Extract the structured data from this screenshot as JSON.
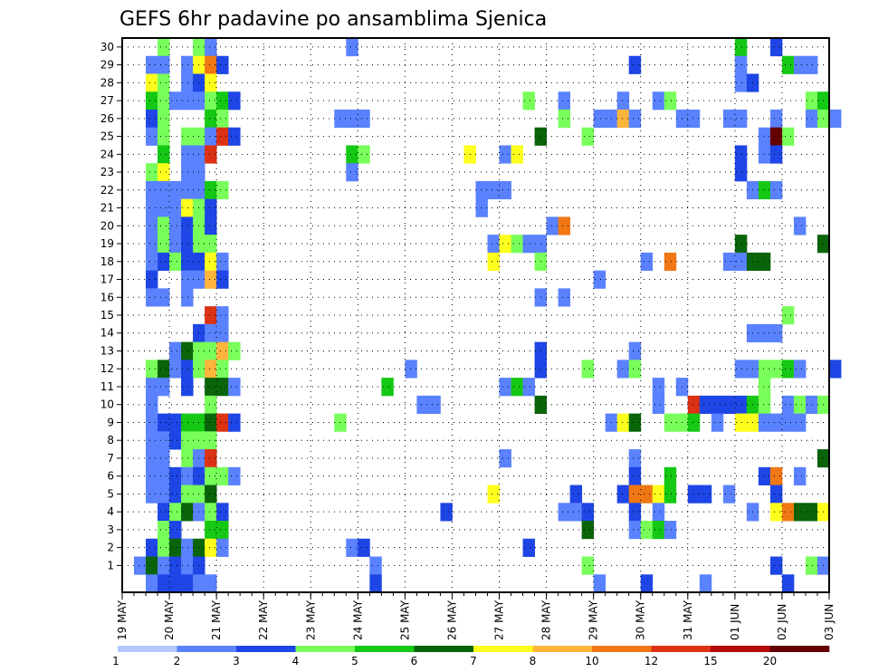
{
  "chart_data": {
    "type": "heatmap",
    "title": "GEFS 6hr padavine po ansamblima Sjenica",
    "xlabel": "",
    "ylabel": "",
    "y_ticks": [
      "1",
      "2",
      "3",
      "4",
      "5",
      "6",
      "7",
      "8",
      "9",
      "10",
      "11",
      "12",
      "13",
      "14",
      "15",
      "16",
      "17",
      "18",
      "19",
      "20",
      "21",
      "22",
      "23",
      "24",
      "25",
      "26",
      "27",
      "28",
      "29",
      "30"
    ],
    "x_tick_labels": [
      "19 MAY",
      "20 MAY",
      "21 MAY",
      "22 MAY",
      "23 MAY",
      "24 MAY",
      "25 MAY",
      "26 MAY",
      "27 MAY",
      "28 MAY",
      "29 MAY",
      "30 MAY",
      "31 MAY",
      "01 JUN",
      "02 JUN",
      "03 JUN"
    ],
    "x_steps_per_day": 4,
    "grid": true,
    "colorbar": {
      "placement": "bottom",
      "levels": [
        "1",
        "2",
        "3",
        "4",
        "5",
        "6",
        "7",
        "8",
        "10",
        "12",
        "15",
        "20"
      ],
      "colors": [
        "#b4c6ff",
        "#5a82ff",
        "#1e46e6",
        "#78ff5a",
        "#14c814",
        "#0a640a",
        "#ffff1e",
        "#ffb43c",
        "#f07814",
        "#dc3214",
        "#b40a0a",
        "#640000"
      ]
    },
    "cells": [
      [
        30,
        3,
        3
      ],
      [
        30,
        6,
        3
      ],
      [
        30,
        7,
        1
      ],
      [
        30,
        19,
        1
      ],
      [
        30,
        52,
        4
      ],
      [
        30,
        55,
        2
      ],
      [
        29,
        2,
        1
      ],
      [
        29,
        3,
        1
      ],
      [
        29,
        5,
        1
      ],
      [
        29,
        6,
        6
      ],
      [
        29,
        7,
        8
      ],
      [
        29,
        8,
        2
      ],
      [
        29,
        43,
        2
      ],
      [
        29,
        52,
        1
      ],
      [
        29,
        56,
        4
      ],
      [
        29,
        57,
        1
      ],
      [
        29,
        58,
        1
      ],
      [
        28,
        2,
        6
      ],
      [
        28,
        3,
        3
      ],
      [
        28,
        5,
        1
      ],
      [
        28,
        6,
        2
      ],
      [
        28,
        7,
        6
      ],
      [
        28,
        52,
        1
      ],
      [
        28,
        53,
        2
      ],
      [
        27,
        2,
        4
      ],
      [
        27,
        3,
        3
      ],
      [
        27,
        4,
        1
      ],
      [
        27,
        5,
        1
      ],
      [
        27,
        6,
        1
      ],
      [
        27,
        7,
        3
      ],
      [
        27,
        8,
        4
      ],
      [
        27,
        9,
        2
      ],
      [
        27,
        34,
        3
      ],
      [
        27,
        37,
        1
      ],
      [
        27,
        42,
        1
      ],
      [
        27,
        45,
        1
      ],
      [
        27,
        46,
        3
      ],
      [
        27,
        58,
        3
      ],
      [
        27,
        59,
        4
      ],
      [
        26,
        2,
        2
      ],
      [
        26,
        3,
        3
      ],
      [
        26,
        7,
        4
      ],
      [
        26,
        8,
        3
      ],
      [
        26,
        18,
        1
      ],
      [
        26,
        19,
        1
      ],
      [
        26,
        20,
        1
      ],
      [
        26,
        37,
        3
      ],
      [
        26,
        40,
        1
      ],
      [
        26,
        41,
        1
      ],
      [
        26,
        42,
        7
      ],
      [
        26,
        43,
        1
      ],
      [
        26,
        47,
        1
      ],
      [
        26,
        48,
        1
      ],
      [
        26,
        51,
        1
      ],
      [
        26,
        52,
        1
      ],
      [
        26,
        55,
        1
      ],
      [
        26,
        58,
        1
      ],
      [
        26,
        59,
        3
      ],
      [
        26,
        60,
        1
      ],
      [
        25,
        2,
        1
      ],
      [
        25,
        3,
        3
      ],
      [
        25,
        5,
        3
      ],
      [
        25,
        6,
        3
      ],
      [
        25,
        7,
        1
      ],
      [
        25,
        8,
        9
      ],
      [
        25,
        9,
        2
      ],
      [
        25,
        35,
        5
      ],
      [
        25,
        39,
        3
      ],
      [
        25,
        54,
        1
      ],
      [
        25,
        55,
        11
      ],
      [
        25,
        56,
        3
      ],
      [
        24,
        3,
        4
      ],
      [
        24,
        5,
        1
      ],
      [
        24,
        6,
        1
      ],
      [
        24,
        7,
        9
      ],
      [
        24,
        19,
        4
      ],
      [
        24,
        20,
        3
      ],
      [
        24,
        29,
        6
      ],
      [
        24,
        32,
        1
      ],
      [
        24,
        33,
        6
      ],
      [
        24,
        52,
        2
      ],
      [
        24,
        54,
        1
      ],
      [
        24,
        55,
        2
      ],
      [
        23,
        2,
        3
      ],
      [
        23,
        3,
        6
      ],
      [
        23,
        5,
        1
      ],
      [
        23,
        6,
        1
      ],
      [
        23,
        19,
        1
      ],
      [
        23,
        52,
        2
      ],
      [
        22,
        2,
        1
      ],
      [
        22,
        3,
        1
      ],
      [
        22,
        4,
        1
      ],
      [
        22,
        5,
        1
      ],
      [
        22,
        6,
        1
      ],
      [
        22,
        7,
        4
      ],
      [
        22,
        8,
        3
      ],
      [
        22,
        30,
        1
      ],
      [
        22,
        31,
        1
      ],
      [
        22,
        32,
        1
      ],
      [
        22,
        53,
        1
      ],
      [
        22,
        54,
        4
      ],
      [
        22,
        55,
        1
      ],
      [
        21,
        2,
        1
      ],
      [
        21,
        3,
        1
      ],
      [
        21,
        4,
        1
      ],
      [
        21,
        5,
        6
      ],
      [
        21,
        6,
        3
      ],
      [
        21,
        7,
        2
      ],
      [
        21,
        30,
        1
      ],
      [
        20,
        2,
        1
      ],
      [
        20,
        3,
        3
      ],
      [
        20,
        4,
        1
      ],
      [
        20,
        5,
        2
      ],
      [
        20,
        6,
        3
      ],
      [
        20,
        7,
        2
      ],
      [
        20,
        36,
        1
      ],
      [
        20,
        37,
        8
      ],
      [
        20,
        57,
        1
      ],
      [
        19,
        2,
        1
      ],
      [
        19,
        3,
        3
      ],
      [
        19,
        4,
        1
      ],
      [
        19,
        5,
        2
      ],
      [
        19,
        6,
        3
      ],
      [
        19,
        7,
        3
      ],
      [
        19,
        31,
        1
      ],
      [
        19,
        32,
        6
      ],
      [
        19,
        33,
        3
      ],
      [
        19,
        34,
        1
      ],
      [
        19,
        35,
        1
      ],
      [
        19,
        52,
        5
      ],
      [
        19,
        59,
        5
      ],
      [
        18,
        2,
        1
      ],
      [
        18,
        3,
        2
      ],
      [
        18,
        4,
        3
      ],
      [
        18,
        5,
        2
      ],
      [
        18,
        6,
        2
      ],
      [
        18,
        7,
        6
      ],
      [
        18,
        8,
        1
      ],
      [
        18,
        31,
        6
      ],
      [
        18,
        35,
        3
      ],
      [
        18,
        44,
        1
      ],
      [
        18,
        46,
        8
      ],
      [
        18,
        51,
        1
      ],
      [
        18,
        52,
        1
      ],
      [
        18,
        53,
        5
      ],
      [
        18,
        54,
        5
      ],
      [
        17,
        2,
        2
      ],
      [
        17,
        5,
        1
      ],
      [
        17,
        6,
        1
      ],
      [
        17,
        7,
        7
      ],
      [
        17,
        8,
        2
      ],
      [
        17,
        40,
        1
      ],
      [
        16,
        2,
        1
      ],
      [
        16,
        3,
        1
      ],
      [
        16,
        5,
        1
      ],
      [
        16,
        35,
        1
      ],
      [
        16,
        37,
        1
      ],
      [
        15,
        7,
        9
      ],
      [
        15,
        8,
        1
      ],
      [
        15,
        56,
        3
      ],
      [
        14,
        6,
        2
      ],
      [
        14,
        7,
        1
      ],
      [
        14,
        8,
        1
      ],
      [
        14,
        53,
        1
      ],
      [
        14,
        54,
        1
      ],
      [
        14,
        55,
        1
      ],
      [
        13,
        4,
        1
      ],
      [
        13,
        5,
        5
      ],
      [
        13,
        6,
        3
      ],
      [
        13,
        7,
        3
      ],
      [
        13,
        8,
        7
      ],
      [
        13,
        9,
        3
      ],
      [
        13,
        35,
        2
      ],
      [
        13,
        43,
        1
      ],
      [
        12,
        2,
        3
      ],
      [
        12,
        3,
        5
      ],
      [
        12,
        4,
        1
      ],
      [
        12,
        5,
        2
      ],
      [
        12,
        6,
        3
      ],
      [
        12,
        7,
        7
      ],
      [
        12,
        8,
        3
      ],
      [
        12,
        24,
        1
      ],
      [
        12,
        35,
        2
      ],
      [
        12,
        39,
        3
      ],
      [
        12,
        42,
        1
      ],
      [
        12,
        43,
        3
      ],
      [
        12,
        52,
        1
      ],
      [
        12,
        53,
        1
      ],
      [
        12,
        54,
        3
      ],
      [
        12,
        55,
        3
      ],
      [
        12,
        56,
        4
      ],
      [
        12,
        57,
        1
      ],
      [
        12,
        60,
        2
      ],
      [
        11,
        2,
        1
      ],
      [
        11,
        3,
        1
      ],
      [
        11,
        5,
        2
      ],
      [
        11,
        7,
        5
      ],
      [
        11,
        8,
        5
      ],
      [
        11,
        9,
        1
      ],
      [
        11,
        22,
        4
      ],
      [
        11,
        32,
        1
      ],
      [
        11,
        33,
        4
      ],
      [
        11,
        34,
        1
      ],
      [
        11,
        45,
        1
      ],
      [
        11,
        47,
        1
      ],
      [
        11,
        54,
        3
      ],
      [
        10,
        2,
        1
      ],
      [
        10,
        7,
        3
      ],
      [
        10,
        25,
        1
      ],
      [
        10,
        26,
        1
      ],
      [
        10,
        35,
        5
      ],
      [
        10,
        45,
        1
      ],
      [
        10,
        48,
        9
      ],
      [
        10,
        49,
        2
      ],
      [
        10,
        50,
        2
      ],
      [
        10,
        51,
        2
      ],
      [
        10,
        52,
        2
      ],
      [
        10,
        53,
        4
      ],
      [
        10,
        54,
        3
      ],
      [
        10,
        56,
        1
      ],
      [
        10,
        57,
        3
      ],
      [
        10,
        58,
        1
      ],
      [
        10,
        59,
        3
      ],
      [
        9,
        2,
        1
      ],
      [
        9,
        3,
        2
      ],
      [
        9,
        4,
        2
      ],
      [
        9,
        5,
        4
      ],
      [
        9,
        6,
        4
      ],
      [
        9,
        7,
        5
      ],
      [
        9,
        8,
        9
      ],
      [
        9,
        9,
        2
      ],
      [
        9,
        18,
        3
      ],
      [
        9,
        41,
        1
      ],
      [
        9,
        42,
        6
      ],
      [
        9,
        43,
        5
      ],
      [
        9,
        46,
        3
      ],
      [
        9,
        47,
        3
      ],
      [
        9,
        48,
        4
      ],
      [
        9,
        50,
        1
      ],
      [
        9,
        52,
        6
      ],
      [
        9,
        53,
        6
      ],
      [
        9,
        54,
        1
      ],
      [
        9,
        55,
        1
      ],
      [
        9,
        56,
        1
      ],
      [
        9,
        57,
        1
      ],
      [
        8,
        2,
        1
      ],
      [
        8,
        3,
        1
      ],
      [
        8,
        4,
        2
      ],
      [
        8,
        5,
        3
      ],
      [
        8,
        6,
        3
      ],
      [
        8,
        7,
        3
      ],
      [
        7,
        2,
        1
      ],
      [
        7,
        3,
        1
      ],
      [
        7,
        5,
        3
      ],
      [
        7,
        6,
        1
      ],
      [
        7,
        7,
        9
      ],
      [
        7,
        32,
        1
      ],
      [
        7,
        43,
        1
      ],
      [
        7,
        59,
        5
      ],
      [
        6,
        2,
        1
      ],
      [
        6,
        3,
        1
      ],
      [
        6,
        4,
        2
      ],
      [
        6,
        5,
        1
      ],
      [
        6,
        6,
        2
      ],
      [
        6,
        7,
        3
      ],
      [
        6,
        8,
        3
      ],
      [
        6,
        9,
        1
      ],
      [
        6,
        43,
        2
      ],
      [
        6,
        46,
        4
      ],
      [
        6,
        54,
        2
      ],
      [
        6,
        55,
        8
      ],
      [
        6,
        57,
        1
      ],
      [
        5,
        2,
        1
      ],
      [
        5,
        3,
        1
      ],
      [
        5,
        4,
        2
      ],
      [
        5,
        5,
        3
      ],
      [
        5,
        6,
        3
      ],
      [
        5,
        7,
        5
      ],
      [
        5,
        31,
        6
      ],
      [
        5,
        38,
        2
      ],
      [
        5,
        42,
        2
      ],
      [
        5,
        43,
        8
      ],
      [
        5,
        44,
        8
      ],
      [
        5,
        45,
        6
      ],
      [
        5,
        46,
        4
      ],
      [
        5,
        48,
        2
      ],
      [
        5,
        49,
        2
      ],
      [
        5,
        51,
        1
      ],
      [
        5,
        55,
        2
      ],
      [
        4,
        3,
        2
      ],
      [
        4,
        4,
        3
      ],
      [
        4,
        5,
        5
      ],
      [
        4,
        6,
        1
      ],
      [
        4,
        7,
        3
      ],
      [
        4,
        8,
        2
      ],
      [
        4,
        27,
        2
      ],
      [
        4,
        37,
        1
      ],
      [
        4,
        38,
        1
      ],
      [
        4,
        39,
        2
      ],
      [
        4,
        43,
        2
      ],
      [
        4,
        45,
        1
      ],
      [
        4,
        53,
        1
      ],
      [
        4,
        55,
        6
      ],
      [
        4,
        56,
        8
      ],
      [
        4,
        57,
        5
      ],
      [
        4,
        58,
        5
      ],
      [
        4,
        59,
        6
      ],
      [
        3,
        3,
        3
      ],
      [
        3,
        4,
        2
      ],
      [
        3,
        7,
        4
      ],
      [
        3,
        8,
        4
      ],
      [
        3,
        39,
        5
      ],
      [
        3,
        43,
        1
      ],
      [
        3,
        44,
        3
      ],
      [
        3,
        45,
        4
      ],
      [
        3,
        46,
        1
      ],
      [
        2,
        2,
        2
      ],
      [
        2,
        3,
        3
      ],
      [
        2,
        4,
        5
      ],
      [
        2,
        5,
        1
      ],
      [
        2,
        6,
        5
      ],
      [
        2,
        7,
        6
      ],
      [
        2,
        8,
        1
      ],
      [
        2,
        19,
        1
      ],
      [
        2,
        20,
        2
      ],
      [
        2,
        34,
        2
      ],
      [
        1,
        1,
        1
      ],
      [
        1,
        2,
        5
      ],
      [
        1,
        3,
        1
      ],
      [
        1,
        4,
        2
      ],
      [
        1,
        5,
        1
      ],
      [
        1,
        6,
        2
      ],
      [
        1,
        21,
        1
      ],
      [
        1,
        39,
        3
      ],
      [
        1,
        55,
        2
      ],
      [
        1,
        58,
        3
      ],
      [
        1,
        59,
        1
      ],
      [
        0,
        2,
        1
      ],
      [
        0,
        3,
        2
      ],
      [
        0,
        4,
        2
      ],
      [
        0,
        5,
        2
      ],
      [
        0,
        6,
        1
      ],
      [
        0,
        7,
        1
      ],
      [
        0,
        21,
        2
      ],
      [
        0,
        40,
        1
      ],
      [
        0,
        44,
        2
      ],
      [
        0,
        49,
        1
      ],
      [
        0,
        56,
        2
      ]
    ]
  }
}
